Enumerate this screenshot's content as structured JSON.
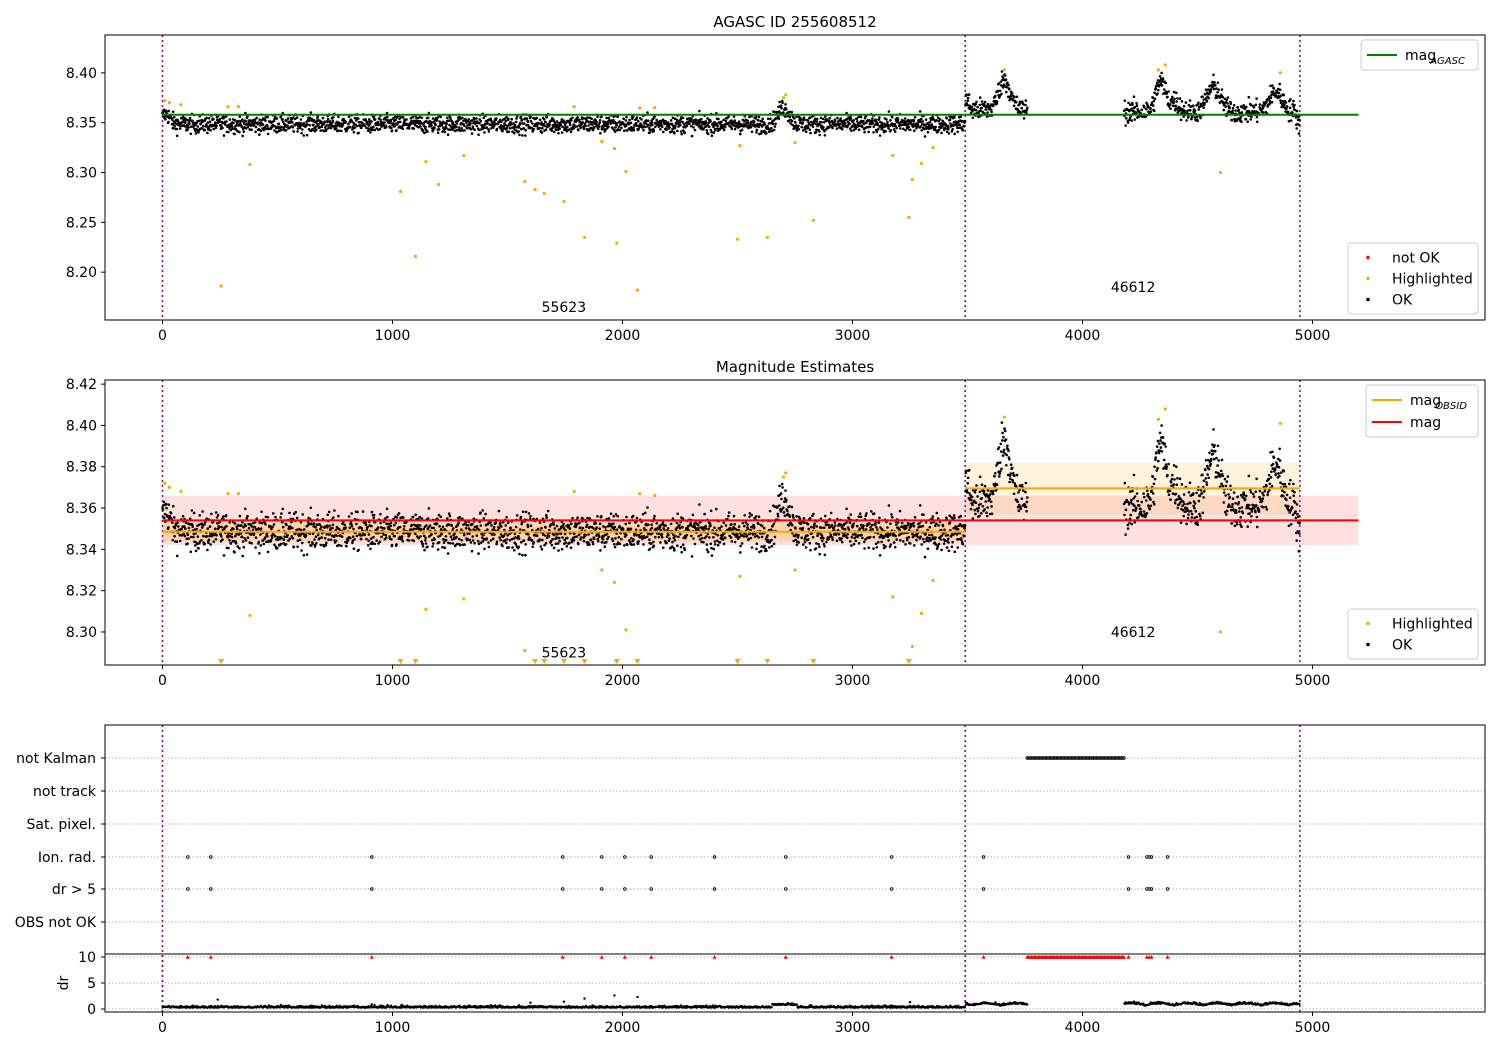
{
  "colors": {
    "ok": "#000000",
    "highlighted": "#ffa500",
    "not_ok": "#ff0000",
    "mag_agasc": "#008000",
    "mag_obsid": "#ffa500",
    "mag": "#ff0000",
    "obsid_boundary": "#800080",
    "grid": "#b0b0b0"
  },
  "chart_data": [
    {
      "id": "agasc",
      "type": "scatter",
      "title": "AGASC ID 255608512",
      "xlim": [
        -250,
        5750
      ],
      "ylim": [
        8.152,
        8.438
      ],
      "xticks": [
        0,
        1000,
        2000,
        3000,
        4000,
        5000
      ],
      "yticks": [
        8.2,
        8.25,
        8.3,
        8.35,
        8.4
      ],
      "ytick_labels": [
        "8.20",
        "8.25",
        "8.30",
        "8.35",
        "8.40"
      ],
      "obsid_boundaries": [
        0,
        3490,
        4945
      ],
      "obsid_labels": [
        {
          "text": "55623",
          "x": 1745,
          "y": 8.165
        },
        {
          "text": "46612",
          "x": 4220,
          "y": 8.185
        }
      ],
      "hlines": [
        {
          "name": "mag_AGASC",
          "y": 8.358,
          "x": [
            0,
            5200
          ],
          "color": "#008000"
        }
      ],
      "legend_top": {
        "position": "top-right",
        "entries": [
          {
            "label": "mag",
            "sub": "AGASC",
            "kind": "line",
            "color": "#008000"
          }
        ]
      },
      "legend_bottom": {
        "position": "bottom-right",
        "entries": [
          {
            "label": "not OK",
            "kind": "dot",
            "color": "#ff0000"
          },
          {
            "label": "Highlighted",
            "kind": "dot",
            "color": "#ffa500"
          },
          {
            "label": "OK",
            "kind": "dot",
            "color": "#000000"
          }
        ]
      },
      "highlighted_points": [
        [
          255,
          8.186
        ],
        [
          380,
          8.308
        ],
        [
          1035,
          8.281
        ],
        [
          1100,
          8.216
        ],
        [
          1145,
          8.311
        ],
        [
          1200,
          8.288
        ],
        [
          1310,
          8.317
        ],
        [
          1575,
          8.291
        ],
        [
          1620,
          8.283
        ],
        [
          1660,
          8.279
        ],
        [
          1745,
          8.271
        ],
        [
          1835,
          8.235
        ],
        [
          1910,
          8.331
        ],
        [
          1965,
          8.324
        ],
        [
          1975,
          8.229
        ],
        [
          2015,
          8.301
        ],
        [
          2065,
          8.182
        ],
        [
          2500,
          8.233
        ],
        [
          2510,
          8.327
        ],
        [
          2630,
          8.235
        ],
        [
          2750,
          8.33
        ],
        [
          2830,
          8.252
        ],
        [
          3175,
          8.317
        ],
        [
          3245,
          8.255
        ],
        [
          3260,
          8.293
        ],
        [
          3300,
          8.309
        ],
        [
          3350,
          8.325
        ],
        [
          4600,
          8.3
        ],
        [
          4330,
          8.403
        ],
        [
          4360,
          8.408
        ],
        [
          3660,
          8.403
        ],
        [
          2700,
          8.375
        ],
        [
          2710,
          8.378
        ],
        [
          4860,
          8.4
        ],
        [
          10,
          8.372
        ],
        [
          30,
          8.37
        ],
        [
          80,
          8.368
        ],
        [
          285,
          8.366
        ],
        [
          330,
          8.366
        ],
        [
          1790,
          8.366
        ],
        [
          2075,
          8.365
        ],
        [
          2140,
          8.365
        ]
      ]
    },
    {
      "id": "magest",
      "type": "scatter",
      "title": "Magnitude Estimates",
      "xlim": [
        -250,
        5750
      ],
      "ylim": [
        8.284,
        8.422
      ],
      "xticks": [
        0,
        1000,
        2000,
        3000,
        4000,
        5000
      ],
      "yticks": [
        8.3,
        8.32,
        8.34,
        8.36,
        8.38,
        8.4,
        8.42
      ],
      "ytick_labels": [
        "8.30",
        "8.32",
        "8.34",
        "8.36",
        "8.38",
        "8.40",
        "8.42"
      ],
      "obsid_boundaries": [
        0,
        3490,
        4945
      ],
      "obsid_labels": [
        {
          "text": "55623",
          "x": 1745,
          "y": 8.29
        },
        {
          "text": "46612",
          "x": 4220,
          "y": 8.3
        }
      ],
      "bands": [
        {
          "x": [
            0,
            5200
          ],
          "y": [
            8.342,
            8.366
          ],
          "color": "#ff0000",
          "opacity": 0.12
        },
        {
          "x": [
            0,
            3490
          ],
          "y": [
            8.344,
            8.353
          ],
          "color": "#ffa500",
          "opacity": 0.22
        },
        {
          "x": [
            3490,
            4945
          ],
          "y": [
            8.357,
            8.382
          ],
          "color": "#ffa500",
          "opacity": 0.13
        }
      ],
      "hlines": [
        {
          "name": "mag_OBSID_55623",
          "y": 8.3485,
          "x": [
            0,
            3490
          ],
          "color": "#ffa500"
        },
        {
          "name": "mag_OBSID_46612",
          "y": 8.3695,
          "x": [
            3490,
            4945
          ],
          "color": "#ffa500"
        },
        {
          "name": "mag",
          "y": 8.354,
          "x": [
            0,
            5200
          ],
          "color": "#ff0000"
        }
      ],
      "legend_top": {
        "position": "top-right",
        "entries": [
          {
            "label": "mag",
            "sub": "OBSID",
            "kind": "line",
            "color": "#ffa500"
          },
          {
            "label": "mag",
            "kind": "line",
            "color": "#ff0000"
          }
        ]
      },
      "legend_bottom": {
        "position": "bottom-right",
        "entries": [
          {
            "label": "Highlighted",
            "kind": "dot",
            "color": "#ffa500"
          },
          {
            "label": "OK",
            "kind": "dot",
            "color": "#000000"
          }
        ]
      },
      "highlighted_points": [
        [
          10,
          8.372
        ],
        [
          30,
          8.37
        ],
        [
          80,
          8.368
        ],
        [
          285,
          8.367
        ],
        [
          330,
          8.367
        ],
        [
          380,
          8.308
        ],
        [
          1145,
          8.311
        ],
        [
          1310,
          8.316
        ],
        [
          1575,
          8.291
        ],
        [
          1790,
          8.368
        ],
        [
          1910,
          8.33
        ],
        [
          1965,
          8.324
        ],
        [
          2015,
          8.301
        ],
        [
          2075,
          8.367
        ],
        [
          2140,
          8.366
        ],
        [
          2510,
          8.327
        ],
        [
          2700,
          8.375
        ],
        [
          2710,
          8.377
        ],
        [
          2750,
          8.33
        ],
        [
          3175,
          8.317
        ],
        [
          3260,
          8.293
        ],
        [
          3300,
          8.309
        ],
        [
          3350,
          8.325
        ],
        [
          3660,
          8.404
        ],
        [
          4330,
          8.403
        ],
        [
          4360,
          8.408
        ],
        [
          4600,
          8.3
        ],
        [
          4860,
          8.401
        ]
      ],
      "below_range_markers": [
        255,
        1035,
        1100,
        1620,
        1660,
        1745,
        1835,
        1975,
        2065,
        2500,
        2630,
        2830,
        3245
      ]
    },
    {
      "id": "flags",
      "type": "scatter",
      "xlim": [
        -250,
        5750
      ],
      "rows": [
        "not Kalman",
        "not track",
        "Sat. pixel.",
        "Ion. rad.",
        "dr > 5",
        "OBS not OK"
      ],
      "obsid_boundaries": [
        0,
        3490,
        4945
      ],
      "not_kalman_range": [
        3760,
        4180
      ],
      "flag_times": [
        110,
        210,
        910,
        1740,
        1910,
        2010,
        2125,
        2400,
        2710,
        3170,
        3570,
        4200,
        4280,
        4290,
        4300,
        4370
      ]
    },
    {
      "id": "dr",
      "type": "scatter",
      "ylabel": "dr",
      "xlim": [
        -250,
        5750
      ],
      "ylim": [
        -0.5,
        10.5
      ],
      "xticks": [
        0,
        1000,
        2000,
        3000,
        4000,
        5000
      ],
      "yticks": [
        0,
        5,
        10
      ],
      "ytick_labels": [
        "0",
        "5",
        "10"
      ],
      "obsid_boundaries": [
        0,
        3490,
        4945
      ],
      "clip_value": 10,
      "outliers": [
        [
          240,
          1.8
        ],
        [
          910,
          0.9
        ],
        [
          1040,
          0.8
        ],
        [
          1600,
          1.2
        ],
        [
          1745,
          1.4
        ],
        [
          1835,
          2.0
        ],
        [
          1965,
          2.6
        ],
        [
          2065,
          2.3
        ],
        [
          3250,
          1.3
        ]
      ],
      "not_kalman_range": [
        3760,
        4180
      ]
    }
  ]
}
